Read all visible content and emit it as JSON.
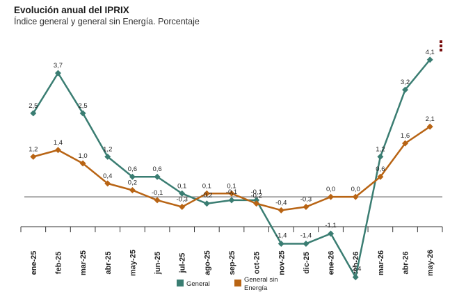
{
  "title": "Evolución anual del IPRIX",
  "subtitle": "Índice general y general sin Energía. Porcentaje",
  "menu_icon": "kebab-menu-icon",
  "chart_data": {
    "type": "line",
    "title": "Evolución anual del IPRIX",
    "subtitle": "Índice general y general sin Energía. Porcentaje",
    "categories": [
      "ene-25",
      "feb-25",
      "mar-25",
      "abr-25",
      "may-25",
      "jun-25",
      "jul-25",
      "ago-25",
      "sep-25",
      "oct-25",
      "nov-25",
      "dic-25",
      "ene-26",
      "feb-26",
      "mar-26",
      "abr-26",
      "may-26"
    ],
    "series": [
      {
        "name": "General",
        "color": "#3a7d72",
        "values": [
          2.5,
          3.7,
          2.5,
          1.2,
          0.6,
          0.6,
          0.1,
          -0.2,
          -0.1,
          -0.1,
          -1.4,
          -1.4,
          -1.1,
          -2.4,
          1.2,
          3.2,
          4.1
        ],
        "labels": [
          "2,5",
          "3,7",
          "2,5",
          "1,2",
          "0,6",
          "0,6",
          "0,1",
          "-0,2",
          "-0,1",
          "-0,1",
          "-1,4",
          "-1,4",
          "-1,1",
          "-2,4",
          "1,2",
          "3,2",
          "4,1"
        ]
      },
      {
        "name": "General sin Energía",
        "color": "#b86414",
        "values": [
          1.2,
          1.4,
          1.0,
          0.4,
          0.2,
          -0.1,
          -0.3,
          0.1,
          0.1,
          -0.2,
          -0.4,
          -0.3,
          0.0,
          0.0,
          0.6,
          1.6,
          2.1
        ],
        "labels": [
          "1,2",
          "1,4",
          "1,0",
          "0,4",
          "0,2",
          "-0,1",
          "-0,3",
          "0,1",
          "0,1",
          "-0,2",
          "-0,4",
          "-0,3",
          "0,0",
          "0,0",
          "0,6",
          "1,6",
          "2,1"
        ]
      }
    ],
    "ylim": [
      -2.7,
      4.7
    ],
    "zero_line": true,
    "grid": false,
    "legend": "bottom",
    "legend_labels": {
      "general": "General",
      "sin_energia_line1": "General sin",
      "sin_energia_line2": "Energía"
    }
  }
}
